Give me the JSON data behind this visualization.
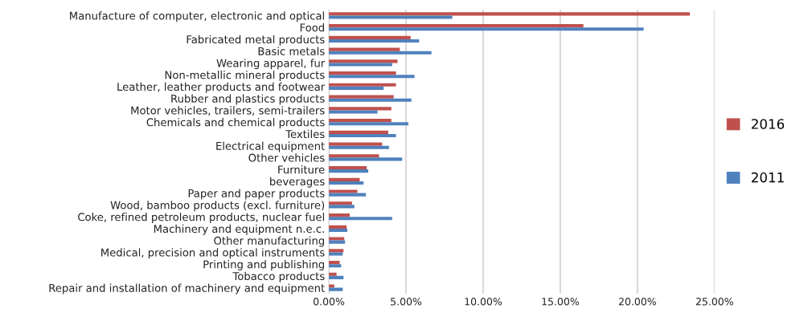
{
  "chart_data": {
    "type": "bar",
    "orientation": "horizontal",
    "categories": [
      "Manufacture of computer, electronic and optical",
      "Food",
      "Fabricated metal products",
      "Basic metals",
      "Wearing apparel, fur",
      "Non-metallic mineral products",
      "Leather, leather products and footwear",
      "Rubber and plastics products",
      "Motor vehicles, trailers, semi-trailers",
      "Chemicals and chemical products",
      "Textiles",
      "Electrical equipment",
      "Other vehicles",
      "Furniture",
      "beverages",
      "Paper and paper products",
      "Wood, bamboo products (excl. furniture)",
      "Coke, refined petroleum products, nuclear fuel",
      "Machinery and equipment n.e.c.",
      "Other manufacturing",
      "Medical, precision and optical instruments",
      "Printing and publishing",
      "Tobacco products",
      "Repair and installation of machinery and equipment"
    ],
    "series": [
      {
        "name": "2016",
        "color": "#c0504d",
        "values": [
          23.4,
          16.5,
          5.3,
          4.6,
          4.45,
          4.35,
          4.35,
          4.2,
          4.05,
          4.05,
          3.85,
          3.45,
          3.25,
          2.45,
          2.0,
          1.85,
          1.5,
          1.35,
          1.15,
          1.0,
          0.95,
          0.7,
          0.5,
          0.35
        ]
      },
      {
        "name": "2011",
        "color": "#4f81bd",
        "values": [
          8.0,
          20.4,
          5.85,
          6.65,
          4.1,
          5.55,
          3.55,
          5.35,
          3.15,
          5.15,
          4.35,
          3.9,
          4.75,
          2.55,
          2.25,
          2.4,
          1.65,
          4.1,
          1.2,
          1.05,
          0.9,
          0.8,
          0.95,
          0.9
        ]
      }
    ],
    "xlim": [
      0,
      25
    ],
    "xticks": [
      {
        "value": 0,
        "label": "0.00%"
      },
      {
        "value": 5,
        "label": "5.00%"
      },
      {
        "value": 10,
        "label": "10.00%"
      },
      {
        "value": 15,
        "label": "15.00%"
      },
      {
        "value": 20,
        "label": "20.00%"
      },
      {
        "value": 25,
        "label": "25.00%"
      }
    ],
    "grid": "x",
    "legend": "right"
  }
}
